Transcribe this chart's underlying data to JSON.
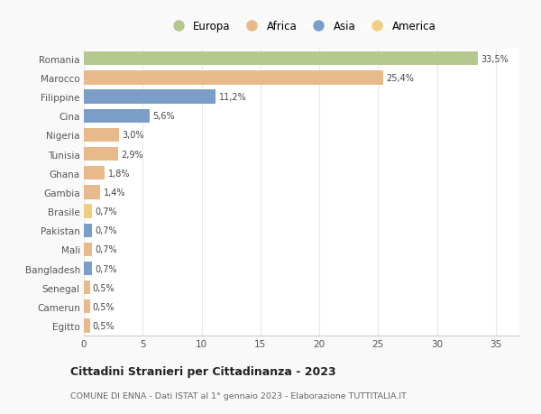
{
  "categories": [
    "Romania",
    "Marocco",
    "Filippine",
    "Cina",
    "Nigeria",
    "Tunisia",
    "Ghana",
    "Gambia",
    "Brasile",
    "Pakistan",
    "Mali",
    "Bangladesh",
    "Senegal",
    "Camerun",
    "Egitto"
  ],
  "values": [
    33.5,
    25.4,
    11.2,
    5.6,
    3.0,
    2.9,
    1.8,
    1.4,
    0.7,
    0.7,
    0.7,
    0.7,
    0.5,
    0.5,
    0.5
  ],
  "labels": [
    "33,5%",
    "25,4%",
    "11,2%",
    "5,6%",
    "3,0%",
    "2,9%",
    "1,8%",
    "1,4%",
    "0,7%",
    "0,7%",
    "0,7%",
    "0,7%",
    "0,5%",
    "0,5%",
    "0,5%"
  ],
  "continents": [
    "Europa",
    "Africa",
    "Asia",
    "Asia",
    "Africa",
    "Africa",
    "Africa",
    "Africa",
    "America",
    "Asia",
    "Africa",
    "Asia",
    "Africa",
    "Africa",
    "Africa"
  ],
  "colors": {
    "Europa": "#b5c98e",
    "Africa": "#e8b98a",
    "Asia": "#7b9ec9",
    "America": "#f0d080"
  },
  "legend_order": [
    "Europa",
    "Africa",
    "Asia",
    "America"
  ],
  "title": "Cittadini Stranieri per Cittadinanza - 2023",
  "subtitle": "COMUNE DI ENNA - Dati ISTAT al 1° gennaio 2023 - Elaborazione TUTTITALIA.IT",
  "xlim": [
    0,
    37
  ],
  "xticks": [
    0,
    5,
    10,
    15,
    20,
    25,
    30,
    35
  ],
  "plot_bg": "#ffffff",
  "fig_bg": "#f9f9f9",
  "grid_color": "#e8e8e8",
  "bar_height": 0.72
}
